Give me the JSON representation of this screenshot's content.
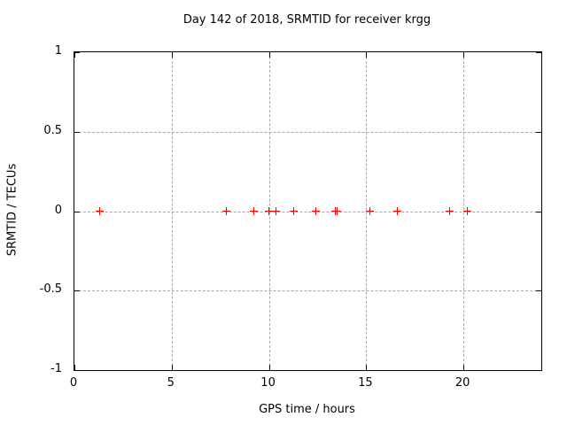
{
  "title": "Day 142 of 2018, SRMTID for receiver krgg",
  "chart_data": {
    "type": "scatter",
    "title": "Day 142 of 2018, SRMTID for receiver krgg",
    "xlabel": "GPS time / hours",
    "ylabel": "SRMTID / TECUs",
    "xlim": [
      0,
      24
    ],
    "ylim": [
      -1,
      1
    ],
    "xticks": [
      0,
      5,
      10,
      15,
      20
    ],
    "yticks": [
      1,
      0.5,
      0,
      -0.5,
      -1
    ],
    "grid": true,
    "legend": "none",
    "marker": "plus",
    "series": [
      {
        "name": "SRMTID",
        "color": "#ff0000",
        "x": [
          1.3,
          7.8,
          9.2,
          10.0,
          10.35,
          11.25,
          12.4,
          13.4,
          13.5,
          15.2,
          16.6,
          19.3,
          20.2
        ],
        "y": [
          0,
          0,
          0,
          0,
          0,
          0,
          0,
          0,
          0,
          0,
          0,
          0,
          0
        ]
      }
    ]
  },
  "colors": {
    "background": "#ffffff",
    "axis": "#000000",
    "grid": "#a8a8a8",
    "marker": "#ff0000",
    "text": "#000000"
  }
}
